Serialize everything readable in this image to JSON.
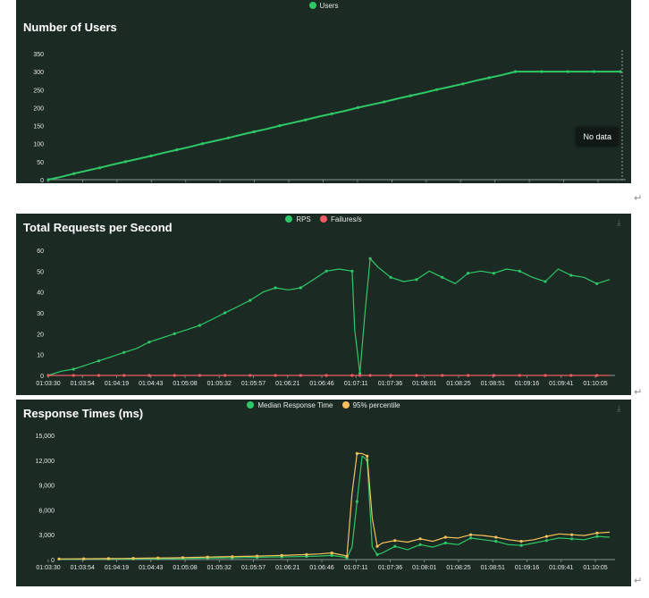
{
  "colors": {
    "panel_bg": "#1b2b24",
    "users": "#2ec866",
    "rps": "#2ec866",
    "failures": "#ef5a64",
    "median": "#2ec866",
    "p95": "#f6c15d",
    "axis_text": "#e6e6e6",
    "grid": "#3a4a42"
  },
  "icons": {
    "download": "download-icon",
    "paragraph": "paragraph-mark"
  },
  "x_ticks": [
    "01:03:30",
    "01:03:54",
    "01:04:19",
    "01:04:43",
    "01:05:08",
    "01:05:32",
    "01:05:57",
    "01:06:21",
    "01:06:46",
    "01:07:11",
    "01:07:36",
    "01:08:01",
    "01:08:25",
    "01:08:51",
    "01:09:16",
    "01:09:41",
    "01:10:05"
  ],
  "tooltip": {
    "no_data": "No data"
  },
  "para_mark": "↵",
  "chart_data": [
    {
      "id": "users",
      "type": "line",
      "title": "Number of Users",
      "legend": [
        "Users"
      ],
      "ylim": [
        0,
        350
      ],
      "yticks": [
        0,
        50,
        100,
        150,
        200,
        250,
        300,
        350
      ],
      "x": [
        0,
        25,
        49,
        74,
        98,
        123,
        147,
        172,
        196,
        221,
        245,
        270,
        294,
        319,
        343,
        368,
        392,
        417,
        441,
        466,
        490,
        515,
        540,
        565,
        590,
        615,
        640,
        665,
        690,
        715,
        740,
        765,
        790,
        815,
        840,
        865,
        890,
        915,
        940,
        965,
        990,
        1015,
        1040,
        1065,
        1090
      ],
      "series": [
        {
          "name": "Users",
          "values": [
            0,
            8,
            17,
            25,
            33,
            42,
            50,
            58,
            66,
            75,
            83,
            91,
            100,
            108,
            116,
            125,
            133,
            141,
            150,
            158,
            166,
            175,
            183,
            191,
            200,
            208,
            216,
            225,
            233,
            241,
            250,
            258,
            266,
            275,
            283,
            291,
            300,
            300,
            300,
            300,
            300,
            300,
            300,
            300,
            300
          ]
        }
      ]
    },
    {
      "id": "rps",
      "type": "line",
      "title": "Total Requests per Second",
      "legend": [
        "RPS",
        "Failures/s"
      ],
      "ylim": [
        0,
        60
      ],
      "yticks": [
        0,
        10,
        20,
        30,
        40,
        50,
        60
      ],
      "x": [
        0,
        25,
        49,
        74,
        98,
        123,
        147,
        172,
        196,
        221,
        245,
        270,
        294,
        319,
        343,
        368,
        392,
        417,
        441,
        466,
        490,
        515,
        540,
        565,
        590,
        595,
        605,
        615,
        625,
        640,
        665,
        690,
        715,
        740,
        765,
        790,
        815,
        840,
        865,
        890,
        915,
        940,
        965,
        990,
        1015,
        1040,
        1065,
        1090
      ],
      "series": [
        {
          "name": "RPS",
          "values": [
            0,
            2,
            3,
            5,
            7,
            9,
            11,
            13,
            16,
            18,
            20,
            22,
            24,
            27,
            30,
            33,
            36,
            40,
            42,
            41,
            42,
            46,
            50,
            51,
            50,
            22,
            1,
            30,
            56,
            52,
            47,
            45,
            46,
            50,
            47,
            44,
            49,
            50,
            49,
            51,
            50,
            47,
            45,
            51,
            48,
            47,
            44,
            46
          ]
        },
        {
          "name": "Failures/s",
          "values": [
            0,
            0,
            0,
            0,
            0,
            0,
            0,
            0,
            0,
            0,
            0,
            0,
            0,
            0,
            0,
            0,
            0,
            0,
            0,
            0,
            0,
            0,
            0,
            0,
            0,
            0,
            0,
            0,
            0,
            0,
            0,
            0,
            0,
            0,
            0,
            0,
            0,
            0,
            0,
            0,
            0,
            0,
            0,
            0,
            0,
            0,
            0,
            0
          ]
        }
      ]
    },
    {
      "id": "resp",
      "type": "line",
      "title": "Response Times (ms)",
      "legend": [
        "Median Response Time",
        "95% percentile"
      ],
      "ylim": [
        0,
        15000
      ],
      "yticks": [
        0,
        3000,
        6000,
        9000,
        12000,
        15000
      ],
      "ytick_labels": [
        "0",
        "3,000",
        "6,000",
        "9,000",
        "12,000",
        "15,000"
      ],
      "x": [
        0,
        25,
        49,
        74,
        98,
        123,
        147,
        172,
        196,
        221,
        245,
        270,
        294,
        319,
        343,
        368,
        392,
        417,
        441,
        466,
        490,
        515,
        540,
        565,
        570,
        580,
        590,
        600,
        610,
        620,
        630,
        640,
        665,
        690,
        715,
        740,
        765,
        790,
        815,
        840,
        865,
        890,
        915,
        940,
        965,
        990,
        1015,
        1040,
        1065,
        1090
      ],
      "series": [
        {
          "name": "Median Response Time",
          "values": [
            50,
            50,
            60,
            60,
            70,
            70,
            80,
            90,
            100,
            110,
            130,
            150,
            180,
            200,
            220,
            250,
            270,
            300,
            320,
            350,
            380,
            420,
            500,
            300,
            200,
            1500,
            7000,
            12500,
            12000,
            1500,
            600,
            800,
            1600,
            1200,
            1800,
            1500,
            2000,
            1800,
            2600,
            2400,
            2200,
            1800,
            1700,
            2000,
            2300,
            2600,
            2500,
            2400,
            2800,
            2700
          ]
        },
        {
          "name": "95% percentile",
          "values": [
            80,
            90,
            100,
            110,
            120,
            130,
            150,
            170,
            190,
            210,
            240,
            270,
            300,
            330,
            360,
            390,
            420,
            460,
            500,
            550,
            600,
            680,
            800,
            500,
            400,
            8000,
            12800,
            12800,
            12500,
            5000,
            1600,
            2000,
            2300,
            2100,
            2500,
            2200,
            2700,
            2600,
            3000,
            2900,
            2700,
            2400,
            2200,
            2400,
            2800,
            3100,
            3000,
            2900,
            3200,
            3300
          ]
        }
      ]
    }
  ]
}
